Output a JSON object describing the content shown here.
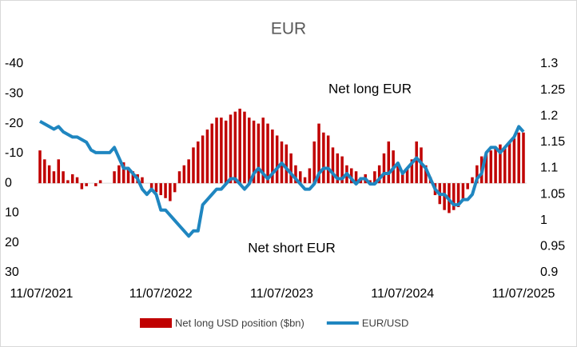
{
  "chart_data": {
    "type": "bar",
    "title": "EUR",
    "annotations": [
      "Net long EUR",
      "Net short EUR"
    ],
    "categories": [
      "11/07/2021",
      null,
      null,
      null,
      null,
      null,
      null,
      null,
      null,
      null,
      null,
      null,
      null,
      null,
      null,
      null,
      null,
      null,
      null,
      null,
      null,
      null,
      null,
      null,
      null,
      null,
      "11/07/2022",
      null,
      null,
      null,
      null,
      null,
      null,
      null,
      null,
      null,
      null,
      null,
      null,
      null,
      null,
      null,
      null,
      null,
      null,
      null,
      null,
      null,
      null,
      null,
      null,
      null,
      "11/07/2023",
      null,
      null,
      null,
      null,
      null,
      null,
      null,
      null,
      null,
      null,
      null,
      null,
      null,
      null,
      null,
      null,
      null,
      null,
      null,
      null,
      null,
      null,
      null,
      null,
      null,
      "11/07/2024",
      null,
      null,
      null,
      null,
      null,
      null,
      null,
      null,
      null,
      null,
      null,
      null,
      null,
      null,
      null,
      null,
      null,
      null,
      null,
      null,
      null,
      null,
      null,
      null,
      null,
      "11/07/2025"
    ],
    "series": [
      {
        "name": "Net long USD position ($bn)",
        "type": "bar",
        "color": "#c00000",
        "values": [
          -11,
          -8,
          -6,
          -4,
          -8,
          -4,
          -1,
          -3,
          -2,
          2,
          1,
          0,
          1,
          -1,
          0,
          0,
          -4,
          -6,
          -7,
          -5,
          -4,
          -3,
          -2,
          0,
          2,
          3,
          4,
          5,
          6,
          3,
          -4,
          -6,
          -8,
          -12,
          -14,
          -16,
          -18,
          -20,
          -22,
          -22,
          -21,
          -23,
          -24,
          -25,
          -24,
          -22,
          -21,
          -20,
          -22,
          -20,
          -18,
          -16,
          -14,
          -13,
          -10,
          -6,
          -4,
          -2,
          -5,
          -14,
          -20,
          -17,
          -16,
          -12,
          -10,
          -9,
          -6,
          -5,
          -4,
          -2,
          -3,
          -1,
          -4,
          -6,
          -10,
          -14,
          -11,
          -6,
          -4,
          -5,
          -8,
          -14,
          -12,
          -6,
          -2,
          4,
          7,
          9,
          10,
          9,
          8,
          6,
          2,
          -2,
          -6,
          -9,
          -10,
          -11,
          -12,
          -13,
          -12,
          -14,
          -15,
          -17,
          -17
        ]
      },
      {
        "name": "EUR/USD",
        "type": "line",
        "axis": "y2",
        "color": "#1f86c0",
        "values": [
          1.19,
          1.185,
          1.18,
          1.175,
          1.18,
          1.17,
          1.165,
          1.16,
          1.16,
          1.155,
          1.15,
          1.135,
          1.13,
          1.13,
          1.13,
          1.13,
          1.14,
          1.12,
          1.1,
          1.1,
          1.09,
          1.08,
          1.06,
          1.05,
          1.06,
          1.05,
          1.02,
          1.02,
          1.01,
          1.0,
          0.99,
          0.98,
          0.97,
          0.98,
          0.98,
          1.03,
          1.04,
          1.05,
          1.06,
          1.06,
          1.07,
          1.08,
          1.08,
          1.07,
          1.06,
          1.07,
          1.09,
          1.1,
          1.09,
          1.08,
          1.09,
          1.1,
          1.11,
          1.1,
          1.09,
          1.08,
          1.07,
          1.06,
          1.06,
          1.07,
          1.09,
          1.1,
          1.1,
          1.09,
          1.08,
          1.08,
          1.09,
          1.08,
          1.07,
          1.08,
          1.08,
          1.07,
          1.07,
          1.08,
          1.09,
          1.09,
          1.1,
          1.11,
          1.09,
          1.1,
          1.11,
          1.12,
          1.11,
          1.1,
          1.08,
          1.06,
          1.05,
          1.05,
          1.04,
          1.03,
          1.03,
          1.04,
          1.04,
          1.05,
          1.08,
          1.09,
          1.13,
          1.14,
          1.14,
          1.13,
          1.14,
          1.15,
          1.16,
          1.18,
          1.17
        ]
      }
    ],
    "ylim": [
      30,
      -40
    ],
    "yticks": [
      -40,
      -30,
      -20,
      -10,
      0,
      10,
      20,
      30
    ],
    "y2lim": [
      0.9,
      1.3
    ],
    "y2ticks": [
      0.9,
      0.95,
      1,
      1.05,
      1.1,
      1.15,
      1.2,
      1.25,
      1.3
    ],
    "legend": "bottom"
  }
}
